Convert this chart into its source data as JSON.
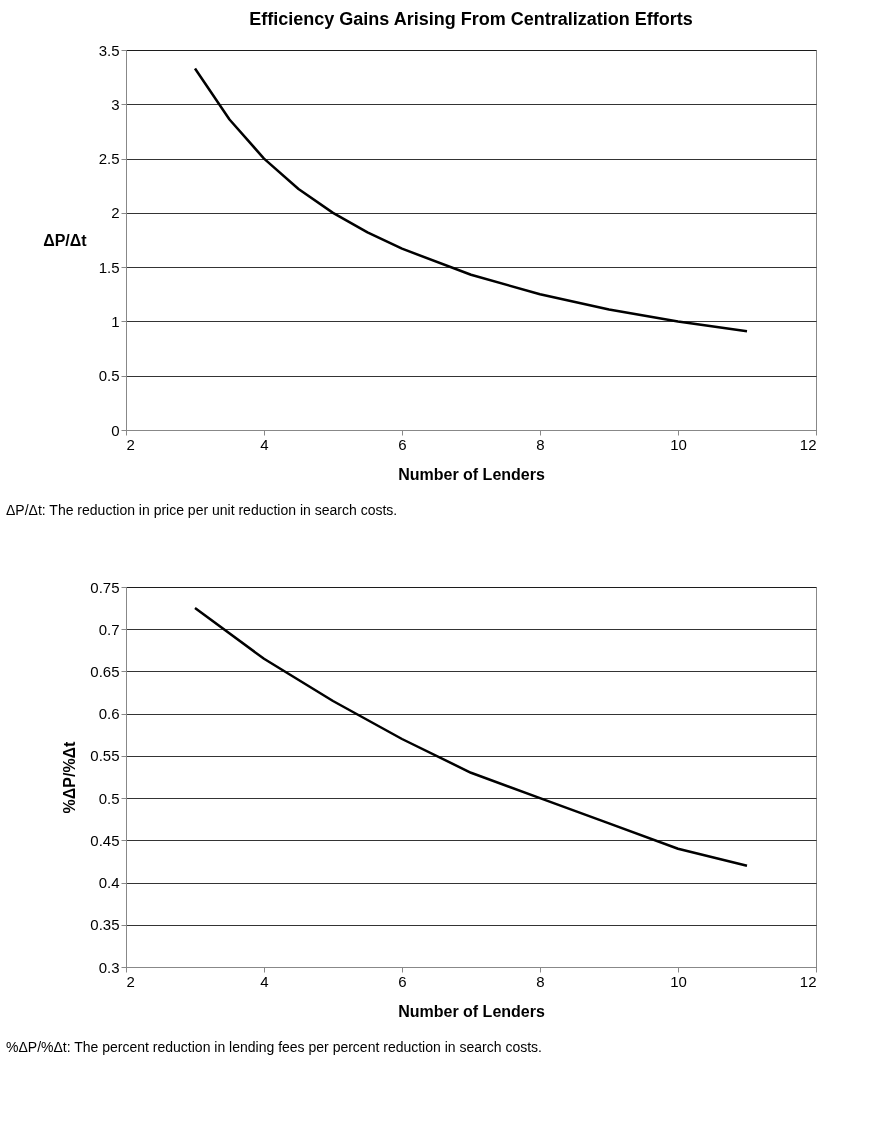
{
  "chart_data": [
    {
      "type": "line",
      "title": "Efficiency Gains Arising From Centralization Efforts",
      "xlabel": "Number of Lenders",
      "ylabel": "ΔP/Δt",
      "annotations": [
        "ΔP/Δt: The reduction in price per unit reduction in search costs."
      ],
      "x": [
        3,
        3.5,
        4,
        4.5,
        5,
        5.5,
        6,
        7,
        8,
        9,
        10,
        11
      ],
      "series": [
        {
          "color": "#000000",
          "values": [
            3.33,
            2.86,
            2.5,
            2.22,
            2.0,
            1.82,
            1.67,
            1.43,
            1.25,
            1.11,
            1.0,
            0.91
          ]
        }
      ],
      "xlim": [
        2,
        12
      ],
      "xticks": [
        2,
        4,
        6,
        8,
        10,
        12
      ],
      "ylim": [
        0,
        3.5
      ],
      "yticks": [
        0,
        0.5,
        1,
        1.5,
        2,
        2.5,
        3,
        3.5
      ],
      "grid": "y",
      "marker": "none",
      "line_style": "solid"
    },
    {
      "type": "line",
      "xlabel": "Number of Lenders",
      "ylabel": "%ΔP/%Δt",
      "annotations": [
        "%ΔP/%Δt: The percent reduction in lending fees per percent reduction in search costs."
      ],
      "x": [
        3,
        4,
        5,
        6,
        7,
        8,
        9,
        10,
        11
      ],
      "series": [
        {
          "color": "#000000",
          "values": [
            0.725,
            0.665,
            0.615,
            0.57,
            0.53,
            0.5,
            0.47,
            0.44,
            0.42
          ]
        }
      ],
      "xlim": [
        2,
        12
      ],
      "xticks": [
        2,
        4,
        6,
        8,
        10,
        12
      ],
      "ylim": [
        0.3,
        0.75
      ],
      "yticks": [
        0.3,
        0.35,
        0.4,
        0.45,
        0.5,
        0.55,
        0.6,
        0.65,
        0.7,
        0.75
      ],
      "grid": "y",
      "marker": "none",
      "line_style": "solid"
    }
  ]
}
